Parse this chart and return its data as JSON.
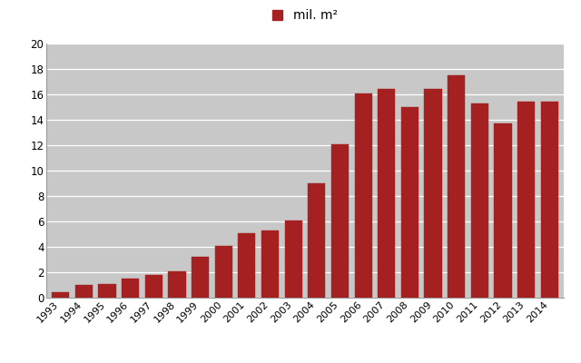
{
  "years": [
    "1993",
    "1994",
    "1995",
    "1996",
    "1997",
    "1998",
    "1999",
    "2000",
    "2001",
    "2002",
    "2003",
    "2004",
    "2005",
    "2006",
    "2007",
    "2008",
    "2009",
    "2010",
    "2011",
    "2012",
    "2013",
    "2014"
  ],
  "values": [
    0.4,
    1.0,
    1.1,
    1.5,
    1.8,
    2.1,
    3.2,
    4.1,
    5.1,
    5.3,
    6.1,
    9.0,
    12.1,
    16.1,
    16.4,
    15.0,
    16.4,
    17.5,
    15.3,
    13.7,
    15.4,
    15.4
  ],
  "bar_color": "#A52020",
  "bar_edge_color": "#A52020",
  "figure_bg": "#FFFFFF",
  "axes_bg": "#C8C8C8",
  "legend_label": "mil. m²",
  "legend_color": "#A52020",
  "ylim": [
    0,
    20
  ],
  "yticks": [
    0,
    2,
    4,
    6,
    8,
    10,
    12,
    14,
    16,
    18,
    20
  ],
  "grid_color": "#FFFFFF",
  "bar_width": 0.75,
  "tick_fontsize": 8,
  "legend_fontsize": 10
}
